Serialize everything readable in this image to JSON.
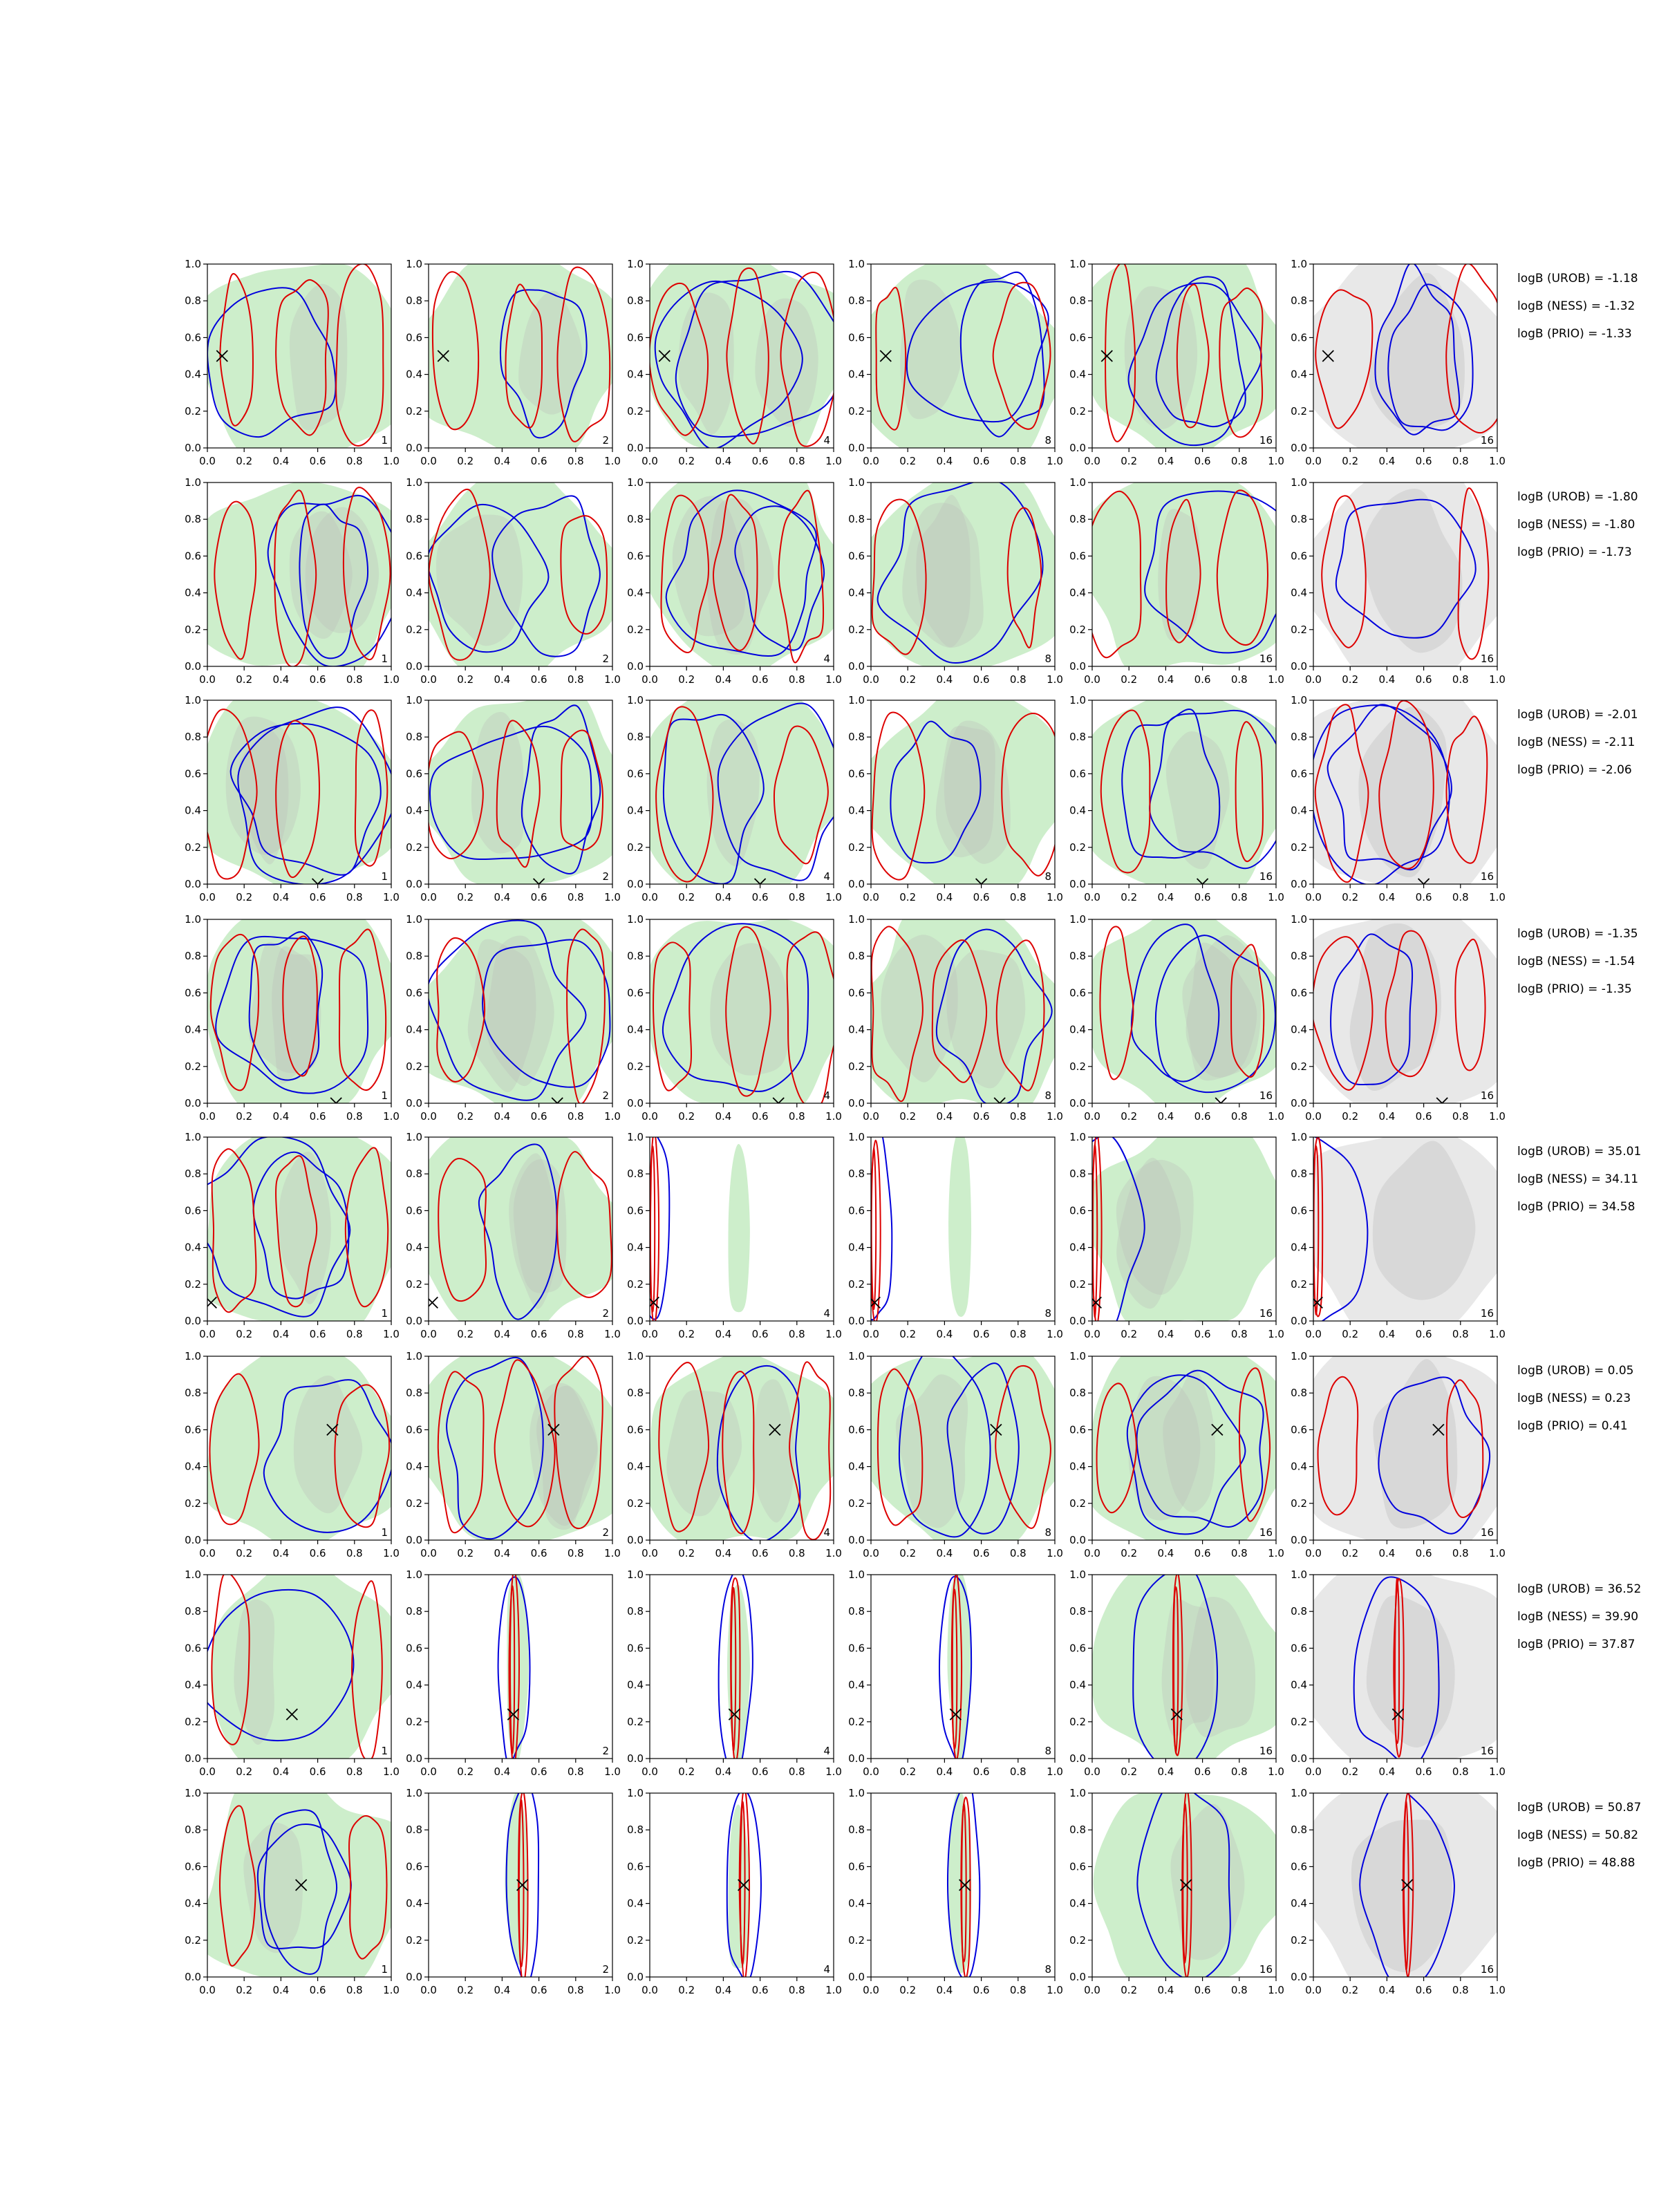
{
  "chart_data": {
    "type": "contour-grid",
    "n_rows": 8,
    "n_cols": 6,
    "xlim": [
      0.0,
      1.0
    ],
    "ylim": [
      0.0,
      1.0
    ],
    "ticks": [
      0.0,
      0.2,
      0.4,
      0.6,
      0.8,
      1.0
    ],
    "tick_labels": [
      "0.0",
      "0.2",
      "0.4",
      "0.6",
      "0.8",
      "1.0"
    ],
    "columns": [
      {
        "n_label": "1",
        "gray": false
      },
      {
        "n_label": "2",
        "gray": false
      },
      {
        "n_label": "4",
        "gray": false
      },
      {
        "n_label": "8",
        "gray": false
      },
      {
        "n_label": "16",
        "gray": false
      },
      {
        "n_label": "16",
        "gray": true
      }
    ],
    "colors": {
      "green_fill": "#cdeecb",
      "gray_fill": "#b9b9b9",
      "light_gray_fill": "#e8e8e8",
      "blue_contour": "#0000dd",
      "red_contour": "#dd0000",
      "marker": "#000000"
    },
    "rows": [
      {
        "marker": [
          0.08,
          0.5
        ],
        "logB": {
          "UROB": "logB (UROB) = -1.18",
          "NESS": "logB (NESS) = -1.32",
          "PRIO": "logB (PRIO) = -1.33"
        }
      },
      {
        "marker": null,
        "logB": {
          "UROB": "logB (UROB) = -1.80",
          "NESS": "logB (NESS) = -1.80",
          "PRIO": "logB (PRIO) = -1.73"
        }
      },
      {
        "marker": [
          0.6,
          0.0
        ],
        "logB": {
          "UROB": "logB (UROB) = -2.01",
          "NESS": "logB (NESS) = -2.11",
          "PRIO": "logB (PRIO) = -2.06"
        }
      },
      {
        "marker": [
          0.7,
          0.0
        ],
        "logB": {
          "UROB": "logB (UROB) = -1.35",
          "NESS": "logB (NESS) = -1.54",
          "PRIO": "logB (PRIO) = -1.35"
        }
      },
      {
        "marker": [
          0.02,
          0.1
        ],
        "logB": {
          "UROB": "logB (UROB) = 35.01",
          "NESS": "logB (NESS) = 34.11",
          "PRIO": "logB (PRIO) = 34.58"
        }
      },
      {
        "marker": [
          0.68,
          0.6
        ],
        "logB": {
          "UROB": "logB (UROB) = 0.05",
          "NESS": "logB (NESS) = 0.23",
          "PRIO": "logB (PRIO) = 0.41"
        }
      },
      {
        "marker": [
          0.46,
          0.24
        ],
        "logB": {
          "UROB": "logB (UROB) = 36.52",
          "NESS": "logB (NESS) = 39.90",
          "PRIO": "logB (PRIO) = 37.87"
        }
      },
      {
        "marker": [
          0.51,
          0.5
        ],
        "logB": {
          "UROB": "logB (UROB) = 50.87",
          "NESS": "logB (NESS) = 50.82",
          "PRIO": "logB (PRIO) = 48.88"
        }
      }
    ]
  }
}
